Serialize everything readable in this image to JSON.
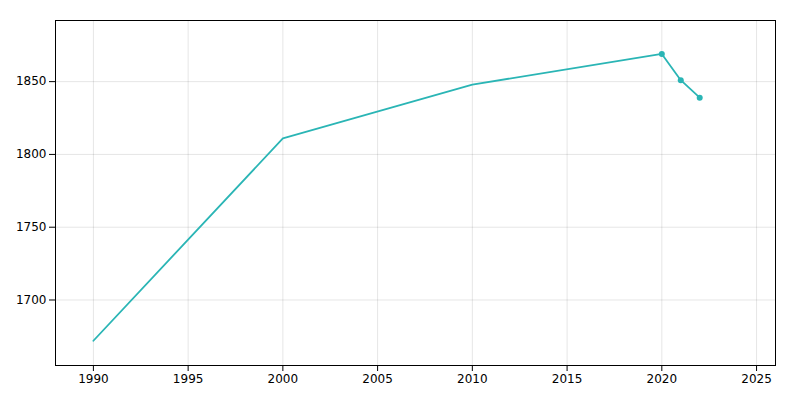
{
  "chart_data": {
    "type": "line",
    "x": [
      1990,
      2000,
      2010,
      2020,
      2021,
      2022
    ],
    "series": [
      {
        "type": "line",
        "color": "#2ab5b5",
        "values": [
          1672,
          1811,
          1848,
          1869,
          1851,
          1839
        ]
      },
      {
        "type": "scatter",
        "marker": "o",
        "color": "#2ab5b5",
        "values": [
          null,
          null,
          null,
          1869,
          1851,
          1839
        ]
      }
    ],
    "xlim": [
      1988,
      2026
    ],
    "xticks": [
      1990,
      1995,
      2000,
      2005,
      2010,
      2015,
      2020,
      2025
    ],
    "ylim": [
      1655,
      1892
    ],
    "yticks": [
      1700,
      1750,
      1800,
      1850
    ],
    "grid": true
  }
}
